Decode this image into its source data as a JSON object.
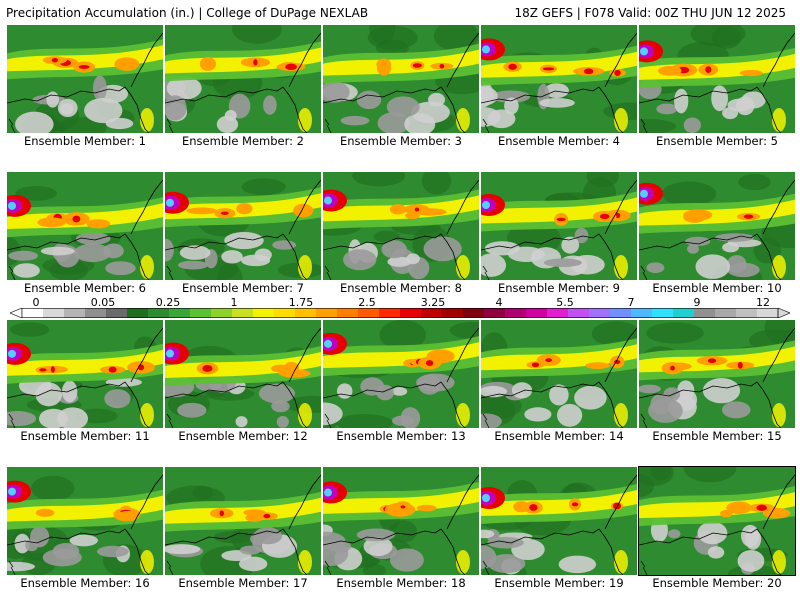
{
  "header": {
    "title": "Precipitation Accumulation (in.) | College of DuPage NEXLAB",
    "run_info": "18Z GEFS | F078 Valid: 00Z THU JUN 12 2025"
  },
  "panel_prefix": "Ensemble Member: ",
  "members": [
    {
      "label": "Ensemble Member: 1"
    },
    {
      "label": "Ensemble Member: 2"
    },
    {
      "label": "Ensemble Member: 3"
    },
    {
      "label": "Ensemble Member: 4"
    },
    {
      "label": "Ensemble Member: 5"
    },
    {
      "label": "Ensemble Member: 6"
    },
    {
      "label": "Ensemble Member: 7"
    },
    {
      "label": "Ensemble Member: 8"
    },
    {
      "label": "Ensemble Member: 9"
    },
    {
      "label": "Ensemble Member: 10"
    },
    {
      "label": "Ensemble Member: 11"
    },
    {
      "label": "Ensemble Member: 12"
    },
    {
      "label": "Ensemble Member: 13"
    },
    {
      "label": "Ensemble Member: 14"
    },
    {
      "label": "Ensemble Member: 15"
    },
    {
      "label": "Ensemble Member: 16"
    },
    {
      "label": "Ensemble Member: 17"
    },
    {
      "label": "Ensemble Member: 18"
    },
    {
      "label": "Ensemble Member: 19"
    },
    {
      "label": "Ensemble Member: 20",
      "selected": true
    }
  ],
  "colorbar": {
    "tick_labels": [
      "0",
      "0.05",
      "0.25",
      "1",
      "1.75",
      "2.5",
      "3.25",
      "4",
      "5.5",
      "7",
      "9",
      "12"
    ],
    "colors": [
      "#ffffff",
      "#d9d9d9",
      "#b5b5b5",
      "#8f8f8f",
      "#6a6a6a",
      "#1f6e1f",
      "#2f8b2f",
      "#3aa63a",
      "#5cc034",
      "#8ed12d",
      "#c8e01f",
      "#f2f200",
      "#ffdc00",
      "#ffc000",
      "#ffa000",
      "#ff7e00",
      "#ff5a00",
      "#ff2a00",
      "#e60000",
      "#c00000",
      "#a00000",
      "#800010",
      "#900040",
      "#b00070",
      "#d000a0",
      "#e020d0",
      "#c050f0",
      "#a070ff",
      "#7090ff",
      "#50b8ff",
      "#30e0ff",
      "#20d0d0",
      "#909090",
      "#a8a8a8",
      "#c0c0c0",
      "#d8d8d8"
    ]
  },
  "palette": {
    "green": "#2f8b2f",
    "dark_green": "#1f6e1f",
    "light_green": "#5cc034",
    "yellow": "#f2f200",
    "orange": "#ffa000",
    "red": "#e60000",
    "magenta": "#c000c0",
    "light_blue": "#50d0ff",
    "gray": "#9a9a9a",
    "light_gray": "#cfcfcf",
    "coast": "#000000"
  }
}
